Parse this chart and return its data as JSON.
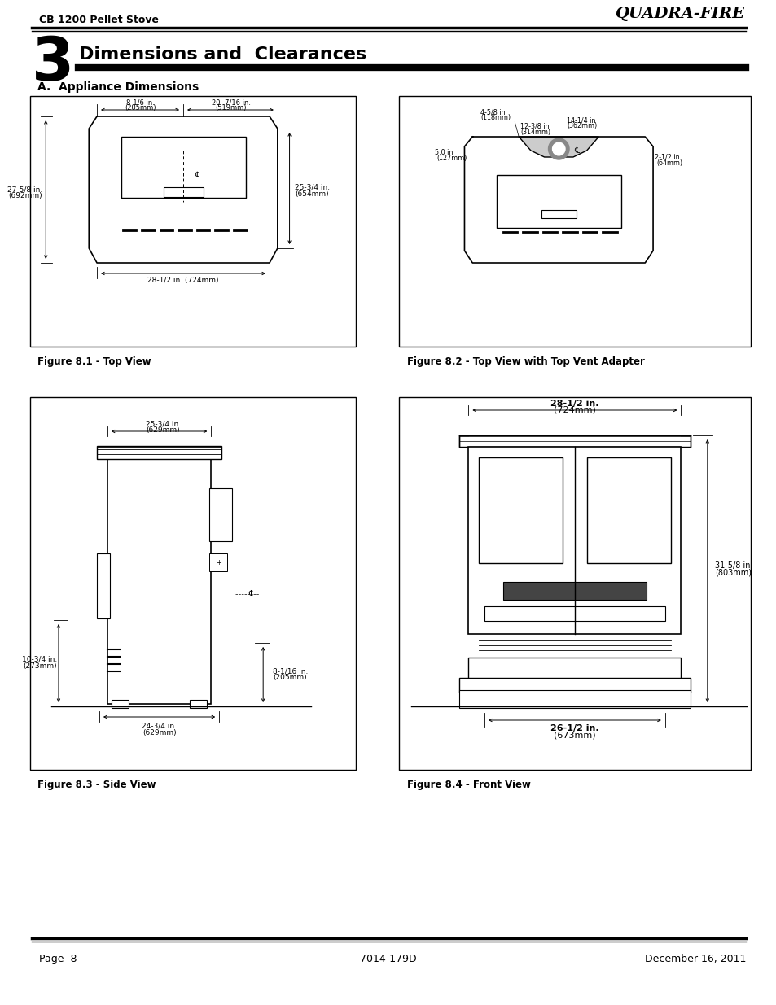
{
  "page_title_left": "CB 1200 Pellet Stove",
  "page_title_right": "QUADRA-FIRE",
  "chapter_number": "3",
  "chapter_title": "Dimensions and  Clearances",
  "section_title": "A.  Appliance Dimensions",
  "fig1_caption": "Figure 8.1 - Top View",
  "fig2_caption": "Figure 8.2 - Top View with Top Vent Adapter",
  "fig3_caption": "Figure 8.3 - Side View",
  "fig4_caption": "Figure 8.4 - Front View",
  "footer_left": "Page  8",
  "footer_center": "7014-179D",
  "footer_right": "December 16, 2011",
  "bg_color": "#ffffff",
  "line_color": "#000000"
}
